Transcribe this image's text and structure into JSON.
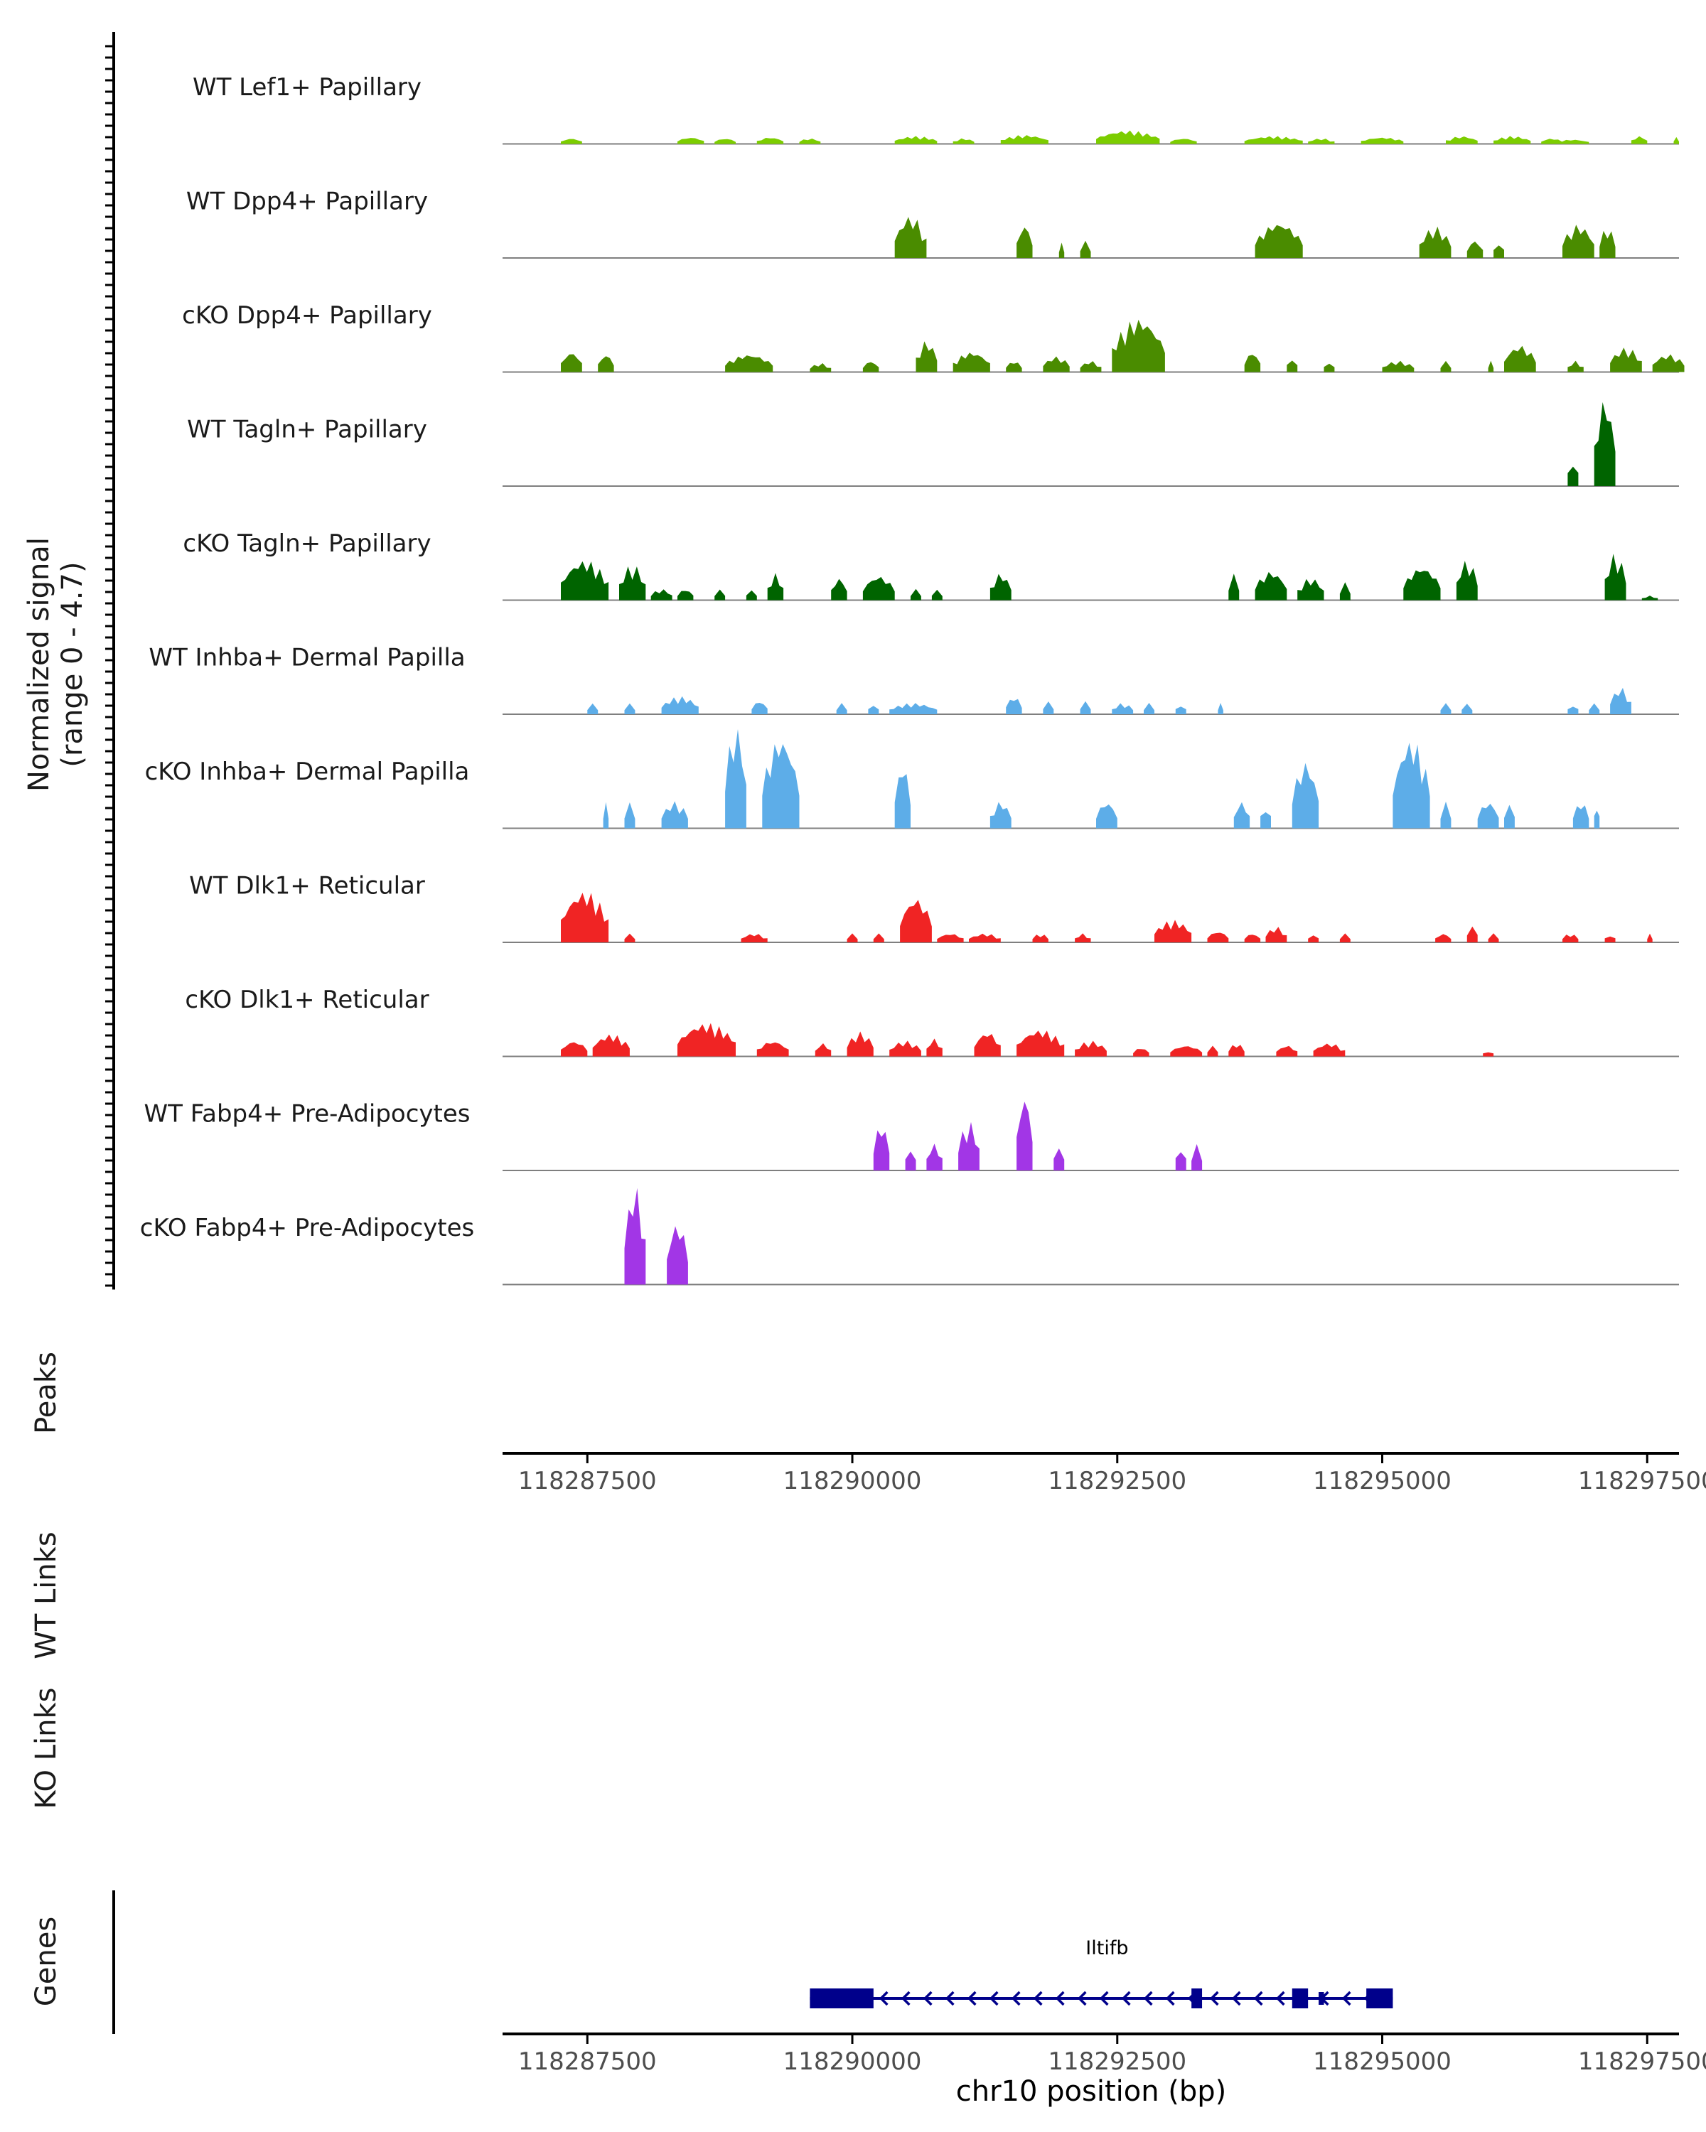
{
  "chart_data": {
    "type": "area",
    "title": "",
    "y_axis_label_line1": "Normalized signal",
    "y_axis_label_line2": "(range 0 - 4.7)",
    "ylim": [
      0,
      4.7
    ],
    "chromosome": "chr10",
    "xlabel": "chr10 position (bp)",
    "xlim": [
      118286700,
      118297800
    ],
    "x_ticks": [
      118287500,
      118290000,
      118292500,
      118295000,
      118297500
    ],
    "x_tick_labels": [
      "118287500",
      "118290000",
      "118292500",
      "118295000",
      "118297500"
    ],
    "series": [
      {
        "name": "WT Lef1+ Papillary",
        "color": "#7CCD00",
        "regions": [
          [
            118287250,
            118287450,
            0.25
          ],
          [
            118288350,
            118288600,
            0.3
          ],
          [
            118288700,
            118288900,
            0.25
          ],
          [
            118289100,
            118289350,
            0.3
          ],
          [
            118289500,
            118289700,
            0.25
          ],
          [
            118290400,
            118290800,
            0.35
          ],
          [
            118290950,
            118291150,
            0.25
          ],
          [
            118291400,
            118291850,
            0.4
          ],
          [
            118292300,
            118292900,
            0.6
          ],
          [
            118293000,
            118293250,
            0.25
          ],
          [
            118293700,
            118294250,
            0.35
          ],
          [
            118294300,
            118294550,
            0.25
          ],
          [
            118294800,
            118295200,
            0.3
          ],
          [
            118295600,
            118295900,
            0.35
          ],
          [
            118296050,
            118296400,
            0.35
          ],
          [
            118296500,
            118296700,
            0.25
          ],
          [
            118296650,
            118296950,
            0.2
          ],
          [
            118297350,
            118297500,
            0.35
          ],
          [
            118297750,
            118297800,
            0.3
          ]
        ]
      },
      {
        "name": "WT Dpp4+ Papillary",
        "color": "#4A8C00",
        "regions": [
          [
            118290400,
            118290700,
            1.9
          ],
          [
            118291550,
            118291700,
            1.5
          ],
          [
            118291950,
            118292000,
            0.7
          ],
          [
            118292150,
            118292250,
            0.8
          ],
          [
            118293800,
            118294250,
            1.6
          ],
          [
            118295350,
            118295650,
            1.4
          ],
          [
            118295800,
            118295950,
            0.8
          ],
          [
            118296050,
            118296150,
            0.8
          ],
          [
            118296700,
            118297000,
            1.5
          ],
          [
            118297050,
            118297200,
            1.4
          ]
        ]
      },
      {
        "name": "cKO Dpp4+ Papillary",
        "color": "#4A8C00",
        "regions": [
          [
            118287250,
            118287450,
            0.9
          ],
          [
            118287600,
            118287750,
            0.8
          ],
          [
            118288800,
            118289250,
            0.8
          ],
          [
            118289600,
            118289800,
            0.4
          ],
          [
            118290100,
            118290250,
            0.5
          ],
          [
            118290600,
            118290800,
            1.4
          ],
          [
            118290950,
            118291300,
            0.9
          ],
          [
            118291450,
            118291600,
            0.5
          ],
          [
            118291800,
            118292050,
            0.7
          ],
          [
            118292150,
            118292350,
            0.5
          ],
          [
            118292450,
            118292950,
            2.4
          ],
          [
            118293700,
            118293850,
            0.9
          ],
          [
            118294100,
            118294200,
            0.7
          ],
          [
            118294450,
            118294550,
            0.5
          ],
          [
            118295000,
            118295300,
            0.5
          ],
          [
            118295550,
            118295650,
            0.5
          ],
          [
            118296000,
            118296050,
            0.5
          ],
          [
            118296150,
            118296450,
            1.2
          ],
          [
            118296750,
            118296900,
            0.5
          ],
          [
            118297150,
            118297450,
            1.1
          ],
          [
            118297550,
            118297850,
            0.8
          ]
        ]
      },
      {
        "name": "WT Tagln+ Papillary",
        "color": "#006400",
        "regions": [
          [
            118296750,
            118296850,
            1.3
          ],
          [
            118297000,
            118297200,
            3.9
          ]
        ]
      },
      {
        "name": "cKO Tagln+ Papillary",
        "color": "#006400",
        "regions": [
          [
            118287250,
            118287700,
            1.8
          ],
          [
            118287800,
            118288050,
            1.6
          ],
          [
            118288100,
            118288300,
            0.5
          ],
          [
            118288350,
            118288500,
            0.5
          ],
          [
            118288700,
            118288800,
            0.5
          ],
          [
            118289000,
            118289100,
            0.5
          ],
          [
            118289200,
            118289350,
            1.2
          ],
          [
            118289800,
            118289950,
            1.0
          ],
          [
            118290100,
            118290400,
            1.1
          ],
          [
            118290550,
            118290650,
            0.5
          ],
          [
            118290750,
            118290850,
            0.5
          ],
          [
            118291300,
            118291500,
            1.2
          ],
          [
            118293550,
            118293650,
            1.2
          ],
          [
            118293800,
            118294100,
            1.3
          ],
          [
            118294200,
            118294450,
            1.0
          ],
          [
            118294600,
            118294700,
            0.8
          ],
          [
            118295200,
            118295550,
            1.5
          ],
          [
            118295700,
            118295900,
            1.8
          ],
          [
            118297100,
            118297300,
            2.1
          ],
          [
            118297450,
            118297600,
            0.2
          ]
        ]
      },
      {
        "name": "WT Inhba+ Dermal Papilla",
        "color": "#5DADE8",
        "regions": [
          [
            118287500,
            118287600,
            0.5
          ],
          [
            118287850,
            118287950,
            0.5
          ],
          [
            118288200,
            118288550,
            0.8
          ],
          [
            118289050,
            118289200,
            0.6
          ],
          [
            118289850,
            118289950,
            0.5
          ],
          [
            118290150,
            118290250,
            0.5
          ],
          [
            118290350,
            118290800,
            0.5
          ],
          [
            118291450,
            118291600,
            0.8
          ],
          [
            118291800,
            118291900,
            0.6
          ],
          [
            118292150,
            118292250,
            0.6
          ],
          [
            118292450,
            118292650,
            0.5
          ],
          [
            118292750,
            118292850,
            0.5
          ],
          [
            118293050,
            118293150,
            0.5
          ],
          [
            118293450,
            118293500,
            0.5
          ],
          [
            118295550,
            118295650,
            0.5
          ],
          [
            118295750,
            118295850,
            0.5
          ],
          [
            118296750,
            118296850,
            0.5
          ],
          [
            118296950,
            118297050,
            0.5
          ],
          [
            118297150,
            118297350,
            1.2
          ]
        ]
      },
      {
        "name": "cKO Inhba+ Dermal Papilla",
        "color": "#5DADE8",
        "regions": [
          [
            118287650,
            118287700,
            1.2
          ],
          [
            118287850,
            118287950,
            1.2
          ],
          [
            118288200,
            118288450,
            1.2
          ],
          [
            118288800,
            118289000,
            4.6
          ],
          [
            118289150,
            118289500,
            4.1
          ],
          [
            118290400,
            118290550,
            2.9
          ],
          [
            118291300,
            118291500,
            1.2
          ],
          [
            118292300,
            118292500,
            1.2
          ],
          [
            118293600,
            118293750,
            1.2
          ],
          [
            118293850,
            118293950,
            1.2
          ],
          [
            118294150,
            118294400,
            3.0
          ],
          [
            118295100,
            118295450,
            4.0
          ],
          [
            118295550,
            118295650,
            1.2
          ],
          [
            118295900,
            118296100,
            1.2
          ],
          [
            118296150,
            118296250,
            1.2
          ],
          [
            118296800,
            118296950,
            1.2
          ],
          [
            118297000,
            118297050,
            1.2
          ]
        ]
      },
      {
        "name": "WT Dlk1+ Reticular",
        "color": "#F02424",
        "regions": [
          [
            118287250,
            118287700,
            2.3
          ],
          [
            118287850,
            118287950,
            0.4
          ],
          [
            118288950,
            118289200,
            0.4
          ],
          [
            118289950,
            118290050,
            0.4
          ],
          [
            118290200,
            118290300,
            0.4
          ],
          [
            118290450,
            118290750,
            2.0
          ],
          [
            118290800,
            118291050,
            0.4
          ],
          [
            118291100,
            118291400,
            0.4
          ],
          [
            118291700,
            118291850,
            0.4
          ],
          [
            118292100,
            118292250,
            0.4
          ],
          [
            118292850,
            118293200,
            1.0
          ],
          [
            118293350,
            118293550,
            0.5
          ],
          [
            118293700,
            118293850,
            0.4
          ],
          [
            118293900,
            118294100,
            0.7
          ],
          [
            118294300,
            118294400,
            0.4
          ],
          [
            118294600,
            118294700,
            0.4
          ],
          [
            118295500,
            118295650,
            0.4
          ],
          [
            118295800,
            118295900,
            0.8
          ],
          [
            118296000,
            118296100,
            0.4
          ],
          [
            118296700,
            118296850,
            0.4
          ],
          [
            118297100,
            118297200,
            0.4
          ],
          [
            118297500,
            118297550,
            0.4
          ]
        ]
      },
      {
        "name": "cKO Dlk1+ Reticular",
        "color": "#F02424",
        "regions": [
          [
            118287250,
            118287500,
            0.7
          ],
          [
            118287550,
            118287900,
            1.0
          ],
          [
            118288350,
            118288900,
            1.5
          ],
          [
            118289100,
            118289400,
            0.7
          ],
          [
            118289650,
            118289800,
            0.6
          ],
          [
            118289950,
            118290200,
            1.1
          ],
          [
            118290350,
            118290650,
            0.7
          ],
          [
            118290700,
            118290850,
            0.8
          ],
          [
            118291150,
            118291400,
            1.1
          ],
          [
            118291550,
            118292000,
            1.2
          ],
          [
            118292100,
            118292400,
            0.7
          ],
          [
            118292650,
            118292800,
            0.4
          ],
          [
            118293000,
            118293300,
            0.5
          ],
          [
            118293350,
            118293450,
            0.5
          ],
          [
            118293550,
            118293700,
            0.6
          ],
          [
            118294000,
            118294200,
            0.5
          ],
          [
            118294350,
            118294650,
            0.6
          ],
          [
            118295950,
            118296050,
            0.3
          ]
        ]
      },
      {
        "name": "WT Fabp4+ Pre-Adipocytes",
        "color": "#A236E6",
        "regions": [
          [
            118290200,
            118290350,
            2.1
          ],
          [
            118290500,
            118290600,
            1.1
          ],
          [
            118290700,
            118290850,
            1.2
          ],
          [
            118291000,
            118291200,
            2.2
          ],
          [
            118291550,
            118291700,
            3.4
          ],
          [
            118291900,
            118292000,
            1.2
          ],
          [
            118293050,
            118293150,
            1.2
          ],
          [
            118293200,
            118293300,
            1.2
          ]
        ]
      },
      {
        "name": "cKO Fabp4+ Pre-Adipocytes",
        "color": "#A236E6",
        "regions": [
          [
            118287850,
            118288050,
            4.4
          ],
          [
            118288250,
            118288450,
            2.8
          ]
        ]
      }
    ]
  },
  "peaks_track": {
    "label": "Peaks"
  },
  "wt_links_track": {
    "label": "WT Links"
  },
  "ko_links_track": {
    "label": "KO Links"
  },
  "genes_track": {
    "label": "Genes",
    "gene_name": "Iltifb",
    "color": "#00008B",
    "strand": "-",
    "gene_span": [
      118289600,
      118295100
    ],
    "exons": [
      [
        118289600,
        118290200,
        "thick"
      ],
      [
        118293200,
        118293300,
        "thick"
      ],
      [
        118294150,
        118294300,
        "thick"
      ],
      [
        118294400,
        118294450,
        "thin"
      ],
      [
        118294850,
        118295100,
        "thick"
      ]
    ]
  }
}
